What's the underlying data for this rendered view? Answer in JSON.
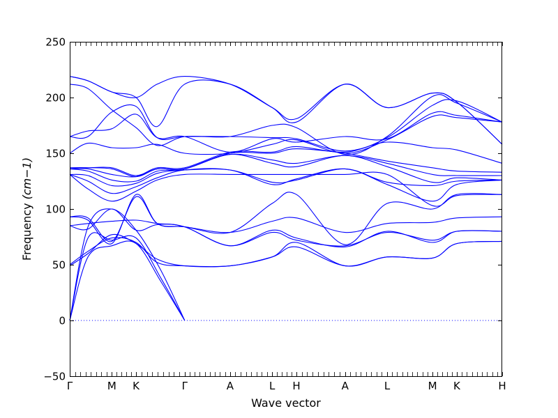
{
  "chart_data": {
    "type": "line",
    "title": "",
    "xlabel": "Wave vector",
    "ylabel": "Frequency",
    "ylabel_unit": "(cm−1)",
    "ylim": [
      -50,
      250
    ],
    "yticks": [
      -50,
      0,
      50,
      100,
      150,
      200,
      250
    ],
    "grid": false,
    "legend": "none",
    "zero_line": {
      "y": 0,
      "style": "dotted"
    },
    "line_color": "#0000ff",
    "high_symmetry_points": [
      {
        "label": "Γ",
        "x": 0
      },
      {
        "label": "M",
        "x": 0.577
      },
      {
        "label": "K",
        "x": 0.91
      },
      {
        "label": "Γ",
        "x": 1.577
      },
      {
        "label": "A",
        "x": 2.2
      },
      {
        "label": "L",
        "x": 2.777
      },
      {
        "label": "H",
        "x": 3.11
      },
      {
        "label": "A",
        "x": 3.777
      },
      {
        "label": "L",
        "x": 4.354
      },
      {
        "label": "M",
        "x": 4.977
      },
      {
        "label": "K",
        "x": 5.31
      },
      {
        "label": "H",
        "x": 5.933
      }
    ],
    "series": [
      {
        "values": [
          [
            0,
            0
          ],
          [
            0.25,
            57
          ],
          [
            0.577,
            67
          ],
          [
            0.91,
            69
          ],
          [
            1.25,
            35
          ],
          [
            1.577,
            0
          ]
        ]
      },
      {
        "values": [
          [
            0,
            0
          ],
          [
            0.25,
            74
          ],
          [
            0.577,
            72
          ],
          [
            0.91,
            74
          ],
          [
            1.25,
            38
          ],
          [
            1.577,
            0
          ]
        ]
      },
      {
        "values": [
          [
            0,
            0
          ],
          [
            0.25,
            84
          ],
          [
            0.577,
            100
          ],
          [
            0.91,
            81
          ],
          [
            1.25,
            45
          ],
          [
            1.577,
            0
          ]
        ]
      },
      {
        "values": [
          [
            0,
            49
          ],
          [
            0.25,
            60
          ],
          [
            0.577,
            77
          ],
          [
            0.91,
            69
          ],
          [
            1.2,
            55
          ],
          [
            1.577,
            49
          ],
          [
            2.2,
            49
          ],
          [
            2.777,
            57
          ],
          [
            3.11,
            66
          ],
          [
            3.777,
            49
          ],
          [
            4.354,
            57
          ],
          [
            4.977,
            56
          ],
          [
            5.31,
            69
          ],
          [
            5.933,
            71
          ]
        ]
      },
      {
        "values": [
          [
            0,
            50
          ],
          [
            0.25,
            62
          ],
          [
            0.577,
            74
          ],
          [
            0.91,
            70
          ],
          [
            1.2,
            52
          ],
          [
            1.577,
            49
          ],
          [
            2.2,
            49
          ],
          [
            2.777,
            57
          ],
          [
            3.11,
            70
          ],
          [
            3.777,
            49
          ],
          [
            4.354,
            57
          ],
          [
            4.977,
            56
          ],
          [
            5.31,
            69
          ],
          [
            5.933,
            71
          ]
        ]
      },
      {
        "values": [
          [
            0,
            85
          ],
          [
            0.25,
            87
          ],
          [
            0.577,
            89
          ],
          [
            0.91,
            90
          ],
          [
            1.2,
            87
          ],
          [
            1.577,
            84
          ],
          [
            2.2,
            67
          ],
          [
            2.777,
            81
          ],
          [
            3.11,
            74
          ],
          [
            3.777,
            66
          ],
          [
            4.354,
            80
          ],
          [
            4.977,
            70
          ],
          [
            5.31,
            80
          ],
          [
            5.933,
            80
          ]
        ]
      },
      {
        "values": [
          [
            0,
            85
          ],
          [
            0.25,
            82
          ],
          [
            0.577,
            100
          ],
          [
            0.91,
            81
          ],
          [
            1.2,
            86
          ],
          [
            1.577,
            84
          ],
          [
            2.2,
            67
          ],
          [
            2.777,
            79
          ],
          [
            3.11,
            72
          ],
          [
            3.777,
            67
          ],
          [
            4.354,
            79
          ],
          [
            4.977,
            72
          ],
          [
            5.31,
            80
          ],
          [
            5.933,
            80
          ]
        ]
      },
      {
        "values": [
          [
            0,
            93
          ],
          [
            0.25,
            90
          ],
          [
            0.577,
            69
          ],
          [
            0.91,
            113
          ],
          [
            1.2,
            87
          ],
          [
            1.577,
            84
          ],
          [
            2.2,
            79
          ],
          [
            2.777,
            89
          ],
          [
            3.11,
            92
          ],
          [
            3.777,
            79
          ],
          [
            4.354,
            87
          ],
          [
            4.977,
            88
          ],
          [
            5.31,
            92
          ],
          [
            5.933,
            93
          ]
        ]
      },
      {
        "values": [
          [
            0,
            93
          ],
          [
            0.25,
            92
          ],
          [
            0.577,
            71
          ],
          [
            0.91,
            111
          ],
          [
            1.2,
            87
          ],
          [
            1.577,
            84
          ],
          [
            2.2,
            79
          ],
          [
            2.777,
            105
          ],
          [
            3.11,
            113
          ],
          [
            3.777,
            68
          ],
          [
            4.354,
            105
          ],
          [
            4.977,
            100
          ],
          [
            5.31,
            113
          ],
          [
            5.933,
            113
          ]
        ]
      },
      {
        "values": [
          [
            0,
            131
          ],
          [
            0.25,
            118
          ],
          [
            0.577,
            107
          ],
          [
            0.91,
            116
          ],
          [
            1.2,
            126
          ],
          [
            1.577,
            131
          ],
          [
            2.2,
            131
          ],
          [
            2.777,
            131
          ],
          [
            3.11,
            131
          ],
          [
            3.777,
            131
          ],
          [
            4.354,
            131
          ],
          [
            4.977,
            103
          ],
          [
            5.31,
            112
          ],
          [
            5.933,
            113
          ]
        ]
      },
      {
        "values": [
          [
            0,
            131
          ],
          [
            0.25,
            125
          ],
          [
            0.577,
            114
          ],
          [
            0.91,
            120
          ],
          [
            1.2,
            128
          ],
          [
            1.577,
            135
          ],
          [
            2.2,
            135
          ],
          [
            2.777,
            122
          ],
          [
            3.11,
            127
          ],
          [
            3.777,
            136
          ],
          [
            4.354,
            122
          ],
          [
            4.977,
            107
          ],
          [
            5.31,
            122
          ],
          [
            5.933,
            126
          ]
        ]
      },
      {
        "values": [
          [
            0,
            131
          ],
          [
            0.25,
            130
          ],
          [
            0.577,
            121
          ],
          [
            0.91,
            123
          ],
          [
            1.2,
            132
          ],
          [
            1.577,
            135
          ],
          [
            2.2,
            135
          ],
          [
            2.777,
            124
          ],
          [
            3.11,
            126
          ],
          [
            3.777,
            136
          ],
          [
            4.354,
            124
          ],
          [
            4.977,
            121
          ],
          [
            5.31,
            125
          ],
          [
            5.933,
            126
          ]
        ]
      },
      {
        "values": [
          [
            0,
            136
          ],
          [
            0.25,
            134
          ],
          [
            0.577,
            126
          ],
          [
            0.91,
            125
          ],
          [
            1.2,
            134
          ],
          [
            1.577,
            136
          ],
          [
            2.2,
            149
          ],
          [
            2.777,
            141
          ],
          [
            3.11,
            138
          ],
          [
            3.777,
            148
          ],
          [
            4.354,
            138
          ],
          [
            4.977,
            124
          ],
          [
            5.31,
            128
          ],
          [
            5.933,
            126
          ]
        ]
      },
      {
        "values": [
          [
            0,
            136
          ],
          [
            0.25,
            136
          ],
          [
            0.577,
            131
          ],
          [
            0.91,
            129
          ],
          [
            1.2,
            136
          ],
          [
            1.577,
            136
          ],
          [
            2.2,
            149
          ],
          [
            2.777,
            144
          ],
          [
            3.11,
            141
          ],
          [
            3.777,
            148
          ],
          [
            4.354,
            141
          ],
          [
            4.977,
            131
          ],
          [
            5.31,
            130
          ],
          [
            5.933,
            130
          ]
        ]
      },
      {
        "values": [
          [
            0,
            137
          ],
          [
            0.25,
            137
          ],
          [
            0.577,
            136
          ],
          [
            0.91,
            129
          ],
          [
            1.2,
            136
          ],
          [
            1.577,
            136
          ],
          [
            2.2,
            150
          ],
          [
            2.777,
            150
          ],
          [
            3.11,
            154
          ],
          [
            3.777,
            150
          ],
          [
            4.354,
            143
          ],
          [
            4.977,
            137
          ],
          [
            5.31,
            134
          ],
          [
            5.933,
            133
          ]
        ]
      },
      {
        "values": [
          [
            0,
            137
          ],
          [
            0.25,
            137
          ],
          [
            0.577,
            137
          ],
          [
            0.91,
            130
          ],
          [
            1.2,
            137
          ],
          [
            1.577,
            137
          ],
          [
            2.2,
            151
          ],
          [
            2.777,
            151
          ],
          [
            3.11,
            156
          ],
          [
            3.777,
            151
          ],
          [
            4.354,
            160
          ],
          [
            4.977,
            155
          ],
          [
            5.31,
            153
          ],
          [
            5.933,
            141
          ]
        ]
      },
      {
        "values": [
          [
            0,
            150
          ],
          [
            0.25,
            159
          ],
          [
            0.577,
            155
          ],
          [
            0.91,
            155
          ],
          [
            1.2,
            158
          ],
          [
            1.577,
            150
          ],
          [
            2.2,
            150
          ],
          [
            2.777,
            158
          ],
          [
            3.11,
            162
          ],
          [
            3.777,
            150
          ],
          [
            4.354,
            162
          ],
          [
            4.977,
            183
          ],
          [
            5.31,
            182
          ],
          [
            5.933,
            178
          ]
        ]
      },
      {
        "values": [
          [
            0,
            165
          ],
          [
            0.25,
            170
          ],
          [
            0.577,
            172
          ],
          [
            0.91,
            185
          ],
          [
            1.2,
            164
          ],
          [
            1.577,
            165
          ],
          [
            2.2,
            151
          ],
          [
            2.777,
            163
          ],
          [
            3.11,
            160
          ],
          [
            3.777,
            165
          ],
          [
            4.354,
            163
          ],
          [
            4.977,
            186
          ],
          [
            5.31,
            184
          ],
          [
            5.933,
            178
          ]
        ]
      },
      {
        "values": [
          [
            0,
            165
          ],
          [
            0.25,
            165
          ],
          [
            0.577,
            187
          ],
          [
            0.91,
            192
          ],
          [
            1.2,
            164
          ],
          [
            1.577,
            165
          ],
          [
            2.2,
            165
          ],
          [
            2.777,
            164
          ],
          [
            3.11,
            163
          ],
          [
            3.777,
            152
          ],
          [
            4.354,
            164
          ],
          [
            4.977,
            193
          ],
          [
            5.31,
            197
          ],
          [
            5.933,
            178
          ]
        ]
      },
      {
        "values": [
          [
            0,
            212
          ],
          [
            0.25,
            208
          ],
          [
            0.577,
            189
          ],
          [
            0.91,
            173
          ],
          [
            1.2,
            157
          ],
          [
            1.577,
            165
          ],
          [
            2.2,
            165
          ],
          [
            2.777,
            175
          ],
          [
            3.11,
            173
          ],
          [
            3.777,
            149
          ],
          [
            4.354,
            165
          ],
          [
            4.977,
            201
          ],
          [
            5.31,
            195
          ],
          [
            5.933,
            178
          ]
        ]
      },
      {
        "values": [
          [
            0,
            219
          ],
          [
            0.25,
            215
          ],
          [
            0.577,
            205
          ],
          [
            0.91,
            200
          ],
          [
            1.2,
            174
          ],
          [
            1.577,
            212
          ],
          [
            2.2,
            212
          ],
          [
            2.777,
            191
          ],
          [
            3.11,
            178
          ],
          [
            3.777,
            212
          ],
          [
            4.354,
            191
          ],
          [
            4.977,
            204
          ],
          [
            5.31,
            196
          ],
          [
            5.933,
            158
          ]
        ]
      },
      {
        "values": [
          [
            0,
            219
          ],
          [
            0.25,
            215
          ],
          [
            0.577,
            205
          ],
          [
            0.91,
            200
          ],
          [
            1.2,
            212
          ],
          [
            1.577,
            219
          ],
          [
            2.2,
            212
          ],
          [
            2.777,
            191
          ],
          [
            3.11,
            181
          ],
          [
            3.777,
            212
          ],
          [
            4.354,
            191
          ],
          [
            4.977,
            204
          ],
          [
            5.31,
            196
          ],
          [
            5.933,
            158
          ]
        ]
      }
    ]
  }
}
